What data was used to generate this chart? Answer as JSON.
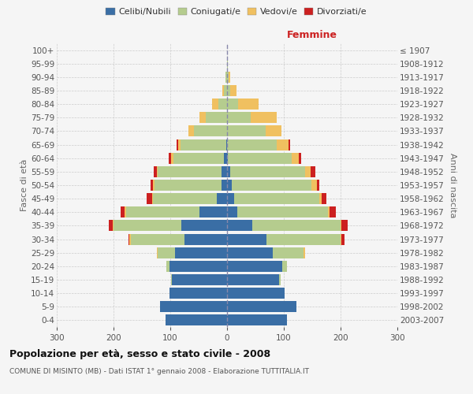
{
  "age_groups": [
    "0-4",
    "5-9",
    "10-14",
    "15-19",
    "20-24",
    "25-29",
    "30-34",
    "35-39",
    "40-44",
    "45-49",
    "50-54",
    "55-59",
    "60-64",
    "65-69",
    "70-74",
    "75-79",
    "80-84",
    "85-89",
    "90-94",
    "95-99",
    "100+"
  ],
  "birth_years": [
    "2003-2007",
    "1998-2002",
    "1993-1997",
    "1988-1992",
    "1983-1987",
    "1978-1982",
    "1973-1977",
    "1968-1972",
    "1963-1967",
    "1958-1962",
    "1953-1957",
    "1948-1952",
    "1943-1947",
    "1938-1942",
    "1933-1937",
    "1928-1932",
    "1923-1927",
    "1918-1922",
    "1913-1917",
    "1908-1912",
    "≤ 1907"
  ],
  "males": {
    "celibi": [
      108,
      118,
      102,
      97,
      102,
      92,
      75,
      80,
      48,
      18,
      10,
      10,
      5,
      2,
      0,
      0,
      0,
      0,
      0,
      0,
      0
    ],
    "coniugati": [
      0,
      0,
      0,
      2,
      5,
      30,
      95,
      120,
      130,
      112,
      118,
      112,
      90,
      80,
      58,
      38,
      15,
      5,
      3,
      0,
      0
    ],
    "vedovi": [
      0,
      0,
      0,
      0,
      0,
      2,
      2,
      2,
      2,
      2,
      2,
      2,
      3,
      4,
      10,
      10,
      12,
      3,
      0,
      0,
      0
    ],
    "divorziati": [
      0,
      0,
      0,
      0,
      0,
      0,
      2,
      6,
      8,
      10,
      5,
      5,
      5,
      3,
      0,
      0,
      0,
      0,
      0,
      0,
      0
    ]
  },
  "females": {
    "nubili": [
      105,
      122,
      102,
      92,
      97,
      80,
      70,
      45,
      18,
      12,
      8,
      5,
      2,
      0,
      0,
      0,
      0,
      0,
      0,
      0,
      0
    ],
    "coniugate": [
      0,
      0,
      0,
      2,
      8,
      55,
      130,
      155,
      160,
      150,
      140,
      132,
      112,
      88,
      68,
      42,
      20,
      5,
      3,
      2,
      0
    ],
    "vedove": [
      0,
      0,
      0,
      0,
      0,
      2,
      2,
      2,
      3,
      5,
      10,
      10,
      12,
      20,
      28,
      45,
      35,
      12,
      2,
      0,
      0
    ],
    "divorziate": [
      0,
      0,
      0,
      0,
      0,
      0,
      5,
      10,
      10,
      8,
      5,
      8,
      5,
      3,
      0,
      0,
      0,
      0,
      0,
      0,
      0
    ]
  },
  "colors": {
    "celibi": "#3a6ea5",
    "coniugati": "#b5cc8e",
    "vedovi": "#f0c060",
    "divorziati": "#cc2020"
  },
  "xlim": 300,
  "title": "Popolazione per età, sesso e stato civile - 2008",
  "subtitle": "COMUNE DI MISINTO (MB) - Dati ISTAT 1° gennaio 2008 - Elaborazione TUTTITALIA.IT",
  "xlabel_right": "Femmine",
  "ylabel_left": "Fasce di età",
  "ylabel_right": "Anni di nascita",
  "legend_labels": [
    "Celibi/Nubili",
    "Coniugati/e",
    "Vedovi/e",
    "Divorziati/e"
  ],
  "background_color": "#f5f5f5",
  "grid_color": "#cccccc"
}
